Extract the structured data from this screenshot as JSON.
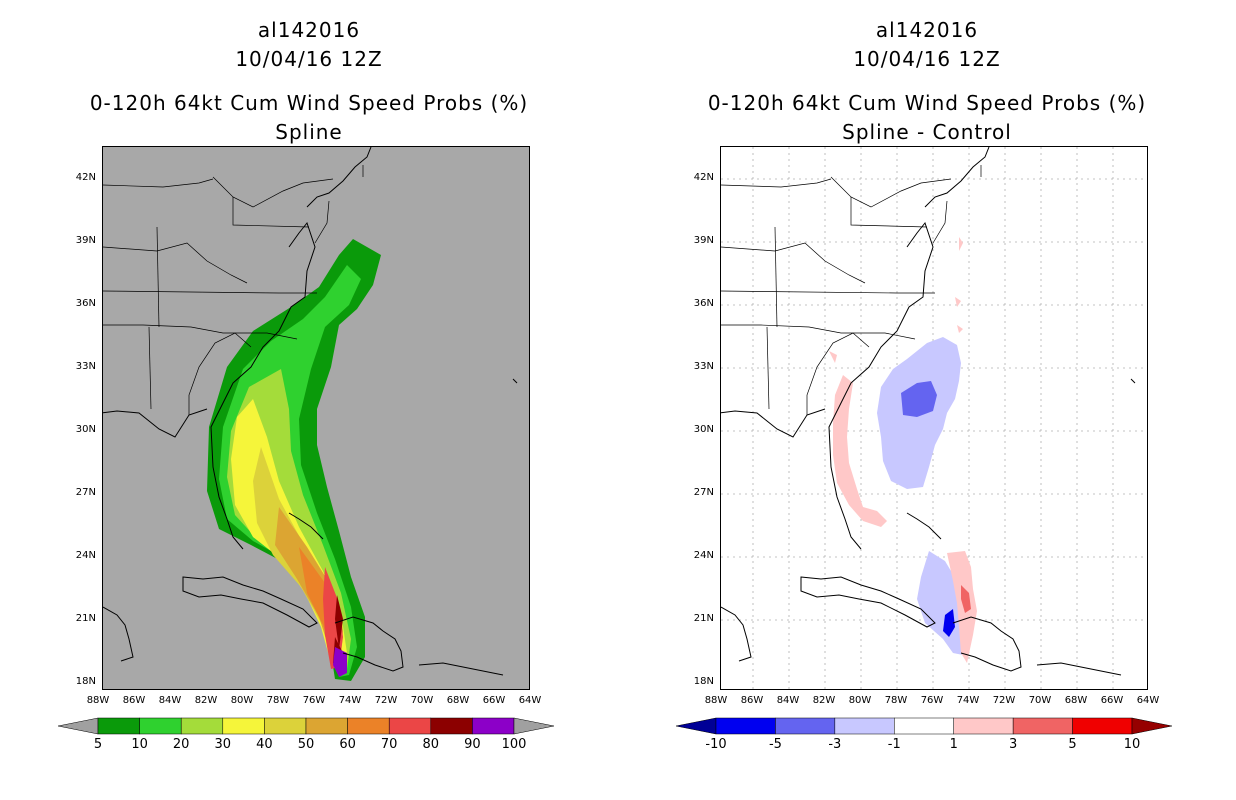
{
  "left": {
    "storm_id": "al142016",
    "datetime": "10/04/16 12Z",
    "product": "0-120h 64kt Cum Wind Speed Probs (%)",
    "variant": "Spline",
    "lat_labels": [
      "42N",
      "39N",
      "36N",
      "33N",
      "30N",
      "27N",
      "24N",
      "21N",
      "18N"
    ],
    "lon_labels": [
      "88W",
      "86W",
      "84W",
      "82W",
      "80W",
      "78W",
      "76W",
      "74W",
      "72W",
      "70W",
      "68W",
      "66W",
      "64W"
    ],
    "colorbar": {
      "labels": [
        "5",
        "10",
        "20",
        "30",
        "40",
        "50",
        "60",
        "70",
        "80",
        "90",
        "100"
      ],
      "colors": [
        "#a0a0a0",
        "#0a9a0a",
        "#2fd12f",
        "#a4dc3a",
        "#f5f53a",
        "#dcd23a",
        "#dca532",
        "#eb8228",
        "#eb4646",
        "#8c0000",
        "#8c00c8",
        "#a0a0a0"
      ]
    }
  },
  "right": {
    "storm_id": "al142016",
    "datetime": "10/04/16 12Z",
    "product": "0-120h 64kt Cum Wind Speed Probs (%)",
    "variant": "Spline - Control",
    "lat_labels": [
      "42N",
      "39N",
      "36N",
      "33N",
      "30N",
      "27N",
      "24N",
      "21N",
      "18N"
    ],
    "lon_labels": [
      "88W",
      "86W",
      "84W",
      "82W",
      "80W",
      "78W",
      "76W",
      "74W",
      "72W",
      "70W",
      "68W",
      "66W",
      "64W"
    ],
    "colorbar": {
      "labels": [
        "-10",
        "-5",
        "-3",
        "-1",
        "1",
        "3",
        "5",
        "10"
      ],
      "colors": [
        "#000096",
        "#0000f0",
        "#6464f0",
        "#c8c8ff",
        "#ffffff",
        "#ffc8c8",
        "#f06464",
        "#f00000",
        "#960000"
      ]
    }
  }
}
